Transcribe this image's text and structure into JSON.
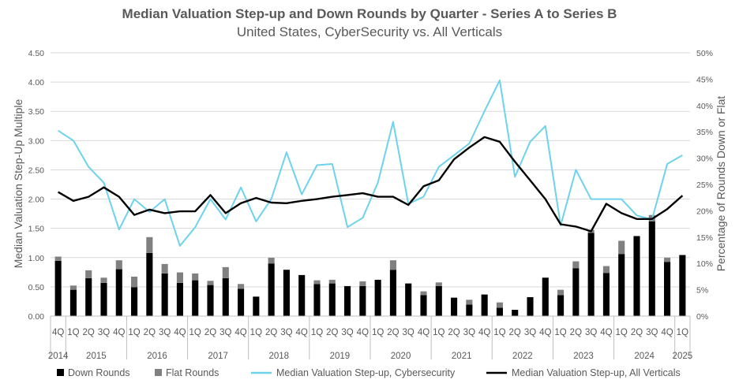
{
  "chart_data": {
    "type": "bar+line",
    "title": "Median Valuation Step-up and Down Rounds by Quarter - Series A to Series B",
    "subtitle": "United States, CyberSecurity vs. All Verticals",
    "ylabel_left": "Median Valuation Step-Up Multiple",
    "ylabel_right": "Percentage of Rounds Down or Flat",
    "ylim_left": [
      0,
      4.5
    ],
    "ylim_right": [
      0,
      50
    ],
    "left_ticks": [
      "0.00",
      "0.50",
      "1.00",
      "1.50",
      "2.00",
      "2.50",
      "3.00",
      "3.50",
      "4.00",
      "4.50"
    ],
    "right_ticks": [
      "0%",
      "5%",
      "10%",
      "15%",
      "20%",
      "25%",
      "30%",
      "35%",
      "40%",
      "45%",
      "50%"
    ],
    "quarters": [
      "4Q",
      "1Q",
      "2Q",
      "3Q",
      "4Q",
      "1Q",
      "2Q",
      "3Q",
      "4Q",
      "1Q",
      "2Q",
      "3Q",
      "4Q",
      "1Q",
      "2Q",
      "3Q",
      "4Q",
      "1Q",
      "2Q",
      "3Q",
      "4Q",
      "1Q",
      "2Q",
      "3Q",
      "4Q",
      "1Q",
      "2Q",
      "3Q",
      "4Q",
      "1Q",
      "2Q",
      "3Q",
      "4Q",
      "1Q",
      "2Q",
      "3Q",
      "4Q",
      "1Q",
      "2Q",
      "3Q",
      "4Q",
      "1Q"
    ],
    "years": [
      {
        "label": "2014",
        "start": 0,
        "end": 0
      },
      {
        "label": "2015",
        "start": 1,
        "end": 4
      },
      {
        "label": "2016",
        "start": 5,
        "end": 8
      },
      {
        "label": "2017",
        "start": 9,
        "end": 12
      },
      {
        "label": "2018",
        "start": 13,
        "end": 16
      },
      {
        "label": "2019",
        "start": 17,
        "end": 20
      },
      {
        "label": "2020",
        "start": 21,
        "end": 24
      },
      {
        "label": "2021",
        "start": 25,
        "end": 28
      },
      {
        "label": "2022",
        "start": 29,
        "end": 32
      },
      {
        "label": "2023",
        "start": 33,
        "end": 36
      },
      {
        "label": "2024",
        "start": 37,
        "end": 40
      },
      {
        "label": "2025",
        "start": 41,
        "end": 41
      }
    ],
    "series": [
      {
        "name": "Down Rounds",
        "type": "bar",
        "axis": "right",
        "color": "#000000",
        "values": [
          10.5,
          5.0,
          7.2,
          6.3,
          8.9,
          5.5,
          12.0,
          8.1,
          6.3,
          6.8,
          5.9,
          7.2,
          5.2,
          3.7,
          10.0,
          8.8,
          7.8,
          6.1,
          6.2,
          5.7,
          5.7,
          6.9,
          8.8,
          6.2,
          4.0,
          5.7,
          3.5,
          2.2,
          4.1,
          1.6,
          1.2,
          3.6,
          7.3,
          4.0,
          9.1,
          15.8,
          8.2,
          11.8,
          15.2,
          18.0,
          10.3,
          11.6
        ]
      },
      {
        "name": "Flat Rounds",
        "type": "bar",
        "axis": "right",
        "color": "#808080",
        "values": [
          0.8,
          0.8,
          1.5,
          1.0,
          1.7,
          2.0,
          3.0,
          1.8,
          2.0,
          1.3,
          0.8,
          2.1,
          0.9,
          0,
          1.1,
          0,
          0,
          0.7,
          0.7,
          0,
          0.9,
          0,
          1.8,
          0,
          0.7,
          0.7,
          0,
          0.9,
          0,
          1.0,
          0,
          0,
          0,
          1.0,
          1.3,
          0.6,
          1.3,
          2.5,
          0,
          1.2,
          0.8,
          0
        ]
      },
      {
        "name": "Median Valuation Step-up, Cybersecurity",
        "type": "line",
        "axis": "left",
        "color": "#6DD3EC",
        "values": [
          3.17,
          3.0,
          2.55,
          2.28,
          1.48,
          2.0,
          1.78,
          2.0,
          1.2,
          1.52,
          2.0,
          1.65,
          2.2,
          1.62,
          2.0,
          2.8,
          2.08,
          2.58,
          2.6,
          1.52,
          1.68,
          2.28,
          3.32,
          1.92,
          2.04,
          2.55,
          2.75,
          2.95,
          3.5,
          4.03,
          2.38,
          2.98,
          3.25,
          1.55,
          2.5,
          2.0,
          2.0,
          2.0,
          1.72,
          1.65,
          2.6,
          2.75
        ]
      },
      {
        "name": "Median Valuation Step-up, All Verticals",
        "type": "line",
        "axis": "left",
        "color": "#000000",
        "values": [
          2.12,
          1.97,
          2.04,
          2.2,
          2.04,
          1.73,
          1.82,
          1.76,
          1.79,
          1.79,
          2.07,
          1.76,
          1.93,
          2.02,
          1.94,
          1.93,
          1.97,
          2.0,
          2.04,
          2.07,
          2.1,
          2.04,
          2.04,
          1.9,
          2.22,
          2.32,
          2.68,
          2.88,
          3.06,
          2.98,
          2.64,
          2.32,
          2.0,
          1.57,
          1.53,
          1.45,
          1.92,
          1.76,
          1.66,
          1.66,
          1.83,
          2.06
        ]
      }
    ],
    "legend": [
      {
        "label": "Down Rounds",
        "kind": "box",
        "color": "#000000"
      },
      {
        "label": "Flat Rounds",
        "kind": "box",
        "color": "#808080"
      },
      {
        "label": "Median Valuation Step-up, Cybersecurity",
        "kind": "line",
        "color": "#6DD3EC"
      },
      {
        "label": "Median Valuation Step-up, All Verticals",
        "kind": "line",
        "color": "#000000"
      }
    ],
    "legend_position": "bottom",
    "grid": true
  }
}
